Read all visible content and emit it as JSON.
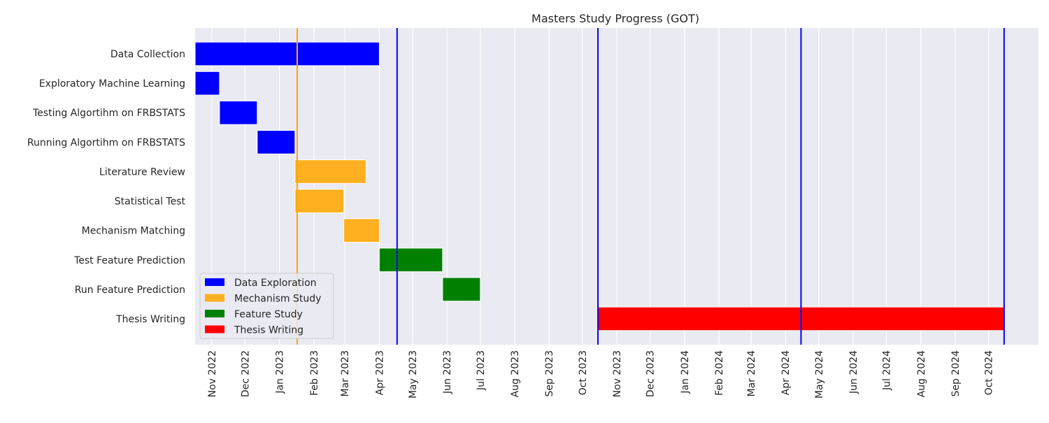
{
  "chart_data": {
    "type": "gantt",
    "title": "Masters Study Progress (GOT)",
    "xlabel": "",
    "ylabel": "",
    "xlim": [
      "2022-10-17",
      "2024-11-15"
    ],
    "x_ticks": [
      "Nov 2022",
      "Dec 2022",
      "Jan 2023",
      "Feb 2023",
      "Mar 2023",
      "Apr 2023",
      "May 2023",
      "Jun 2023",
      "Jul 2023",
      "Aug 2023",
      "Sep 2023",
      "Oct 2023",
      "Nov 2023",
      "Dec 2023",
      "Jan 2024",
      "Feb 2024",
      "Mar 2024",
      "Apr 2024",
      "May 2024",
      "Jun 2024",
      "Jul 2024",
      "Aug 2024",
      "Sep 2024",
      "Oct 2024"
    ],
    "tasks": [
      {
        "task": "Data Collection",
        "start": "2022-10-17",
        "end": "2023-04-01",
        "group": "Data Exploration"
      },
      {
        "task": "Exploratory Machine Learning",
        "start": "2022-10-17",
        "end": "2022-11-08",
        "group": "Data Exploration"
      },
      {
        "task": "Testing Algortihm on FRBSTATS",
        "start": "2022-11-08",
        "end": "2022-12-12",
        "group": "Data Exploration"
      },
      {
        "task": "Running Algortihm on FRBSTATS",
        "start": "2022-12-12",
        "end": "2023-01-15",
        "group": "Data Exploration"
      },
      {
        "task": "Literature Review",
        "start": "2023-01-15",
        "end": "2023-03-20",
        "group": "Mechanism Study"
      },
      {
        "task": "Statistical Test",
        "start": "2023-01-15",
        "end": "2023-02-28",
        "group": "Mechanism Study"
      },
      {
        "task": "Mechanism Matching",
        "start": "2023-02-28",
        "end": "2023-04-01",
        "group": "Mechanism Study"
      },
      {
        "task": "Test Feature Prediction",
        "start": "2023-04-01",
        "end": "2023-05-28",
        "group": "Feature Study"
      },
      {
        "task": "Run Feature Prediction",
        "start": "2023-05-28",
        "end": "2023-07-01",
        "group": "Feature Study"
      },
      {
        "task": "Thesis Writing",
        "start": "2023-10-15",
        "end": "2024-10-15",
        "group": "Thesis Writing"
      }
    ],
    "legend": {
      "placement": "lower-left",
      "entries": [
        {
          "name": "Data Exploration",
          "color": "#0000ff"
        },
        {
          "name": "Mechanism Study",
          "color": "#ffb020"
        },
        {
          "name": "Feature Study",
          "color": "#008000"
        },
        {
          "name": "Thesis Writing",
          "color": "#ff0000"
        }
      ]
    },
    "vertical_lines": [
      {
        "date": "2023-01-17",
        "color": "#ffa500"
      },
      {
        "date": "2023-04-17",
        "color": "#0000ff"
      },
      {
        "date": "2023-10-15",
        "color": "#0000ff"
      },
      {
        "date": "2024-04-15",
        "color": "#0000ff"
      },
      {
        "date": "2024-10-15",
        "color": "#0000ff"
      }
    ],
    "grid": true,
    "background": "#eaeaf2"
  }
}
